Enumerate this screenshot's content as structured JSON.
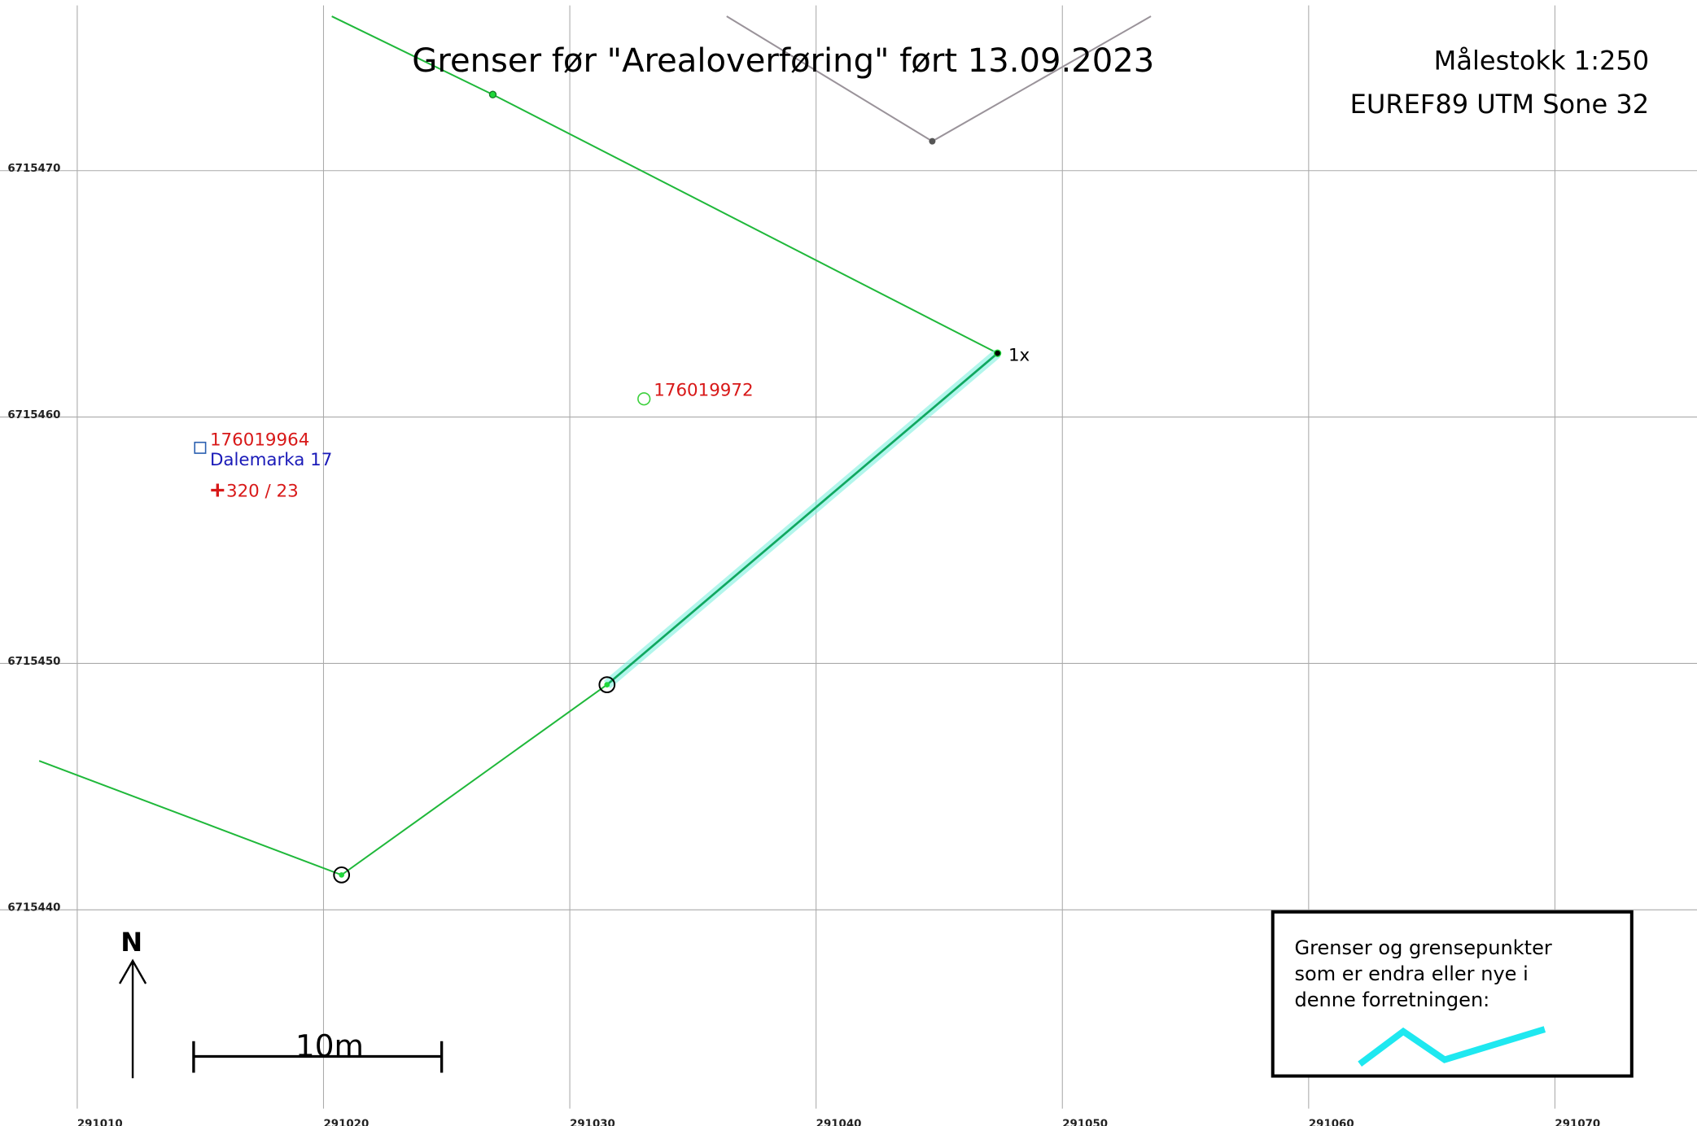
{
  "header": {
    "title": "Grenser før \"Arealoverføring\" ført 13.09.2023",
    "scale": "Målestokk 1:250",
    "crs": "EUREF89 UTM Sone 32"
  },
  "grid": {
    "x_labels": [
      "291010",
      "291020",
      "291030",
      "291040",
      "291050",
      "291060",
      "291070"
    ],
    "y_labels": [
      "6715470",
      "6715460",
      "6715450",
      "6715440"
    ]
  },
  "points": [
    {
      "label": "1x"
    },
    {
      "label": "176019972"
    },
    {
      "label": "176019964",
      "address": "Dalemarka 17"
    },
    {
      "label": "320 / 23"
    }
  ],
  "north": "N",
  "scale_bar": "10m",
  "legend": {
    "lines": [
      "Grenser og grensepunkter",
      "som er endra eller nye i",
      "denne forretningen:"
    ]
  }
}
